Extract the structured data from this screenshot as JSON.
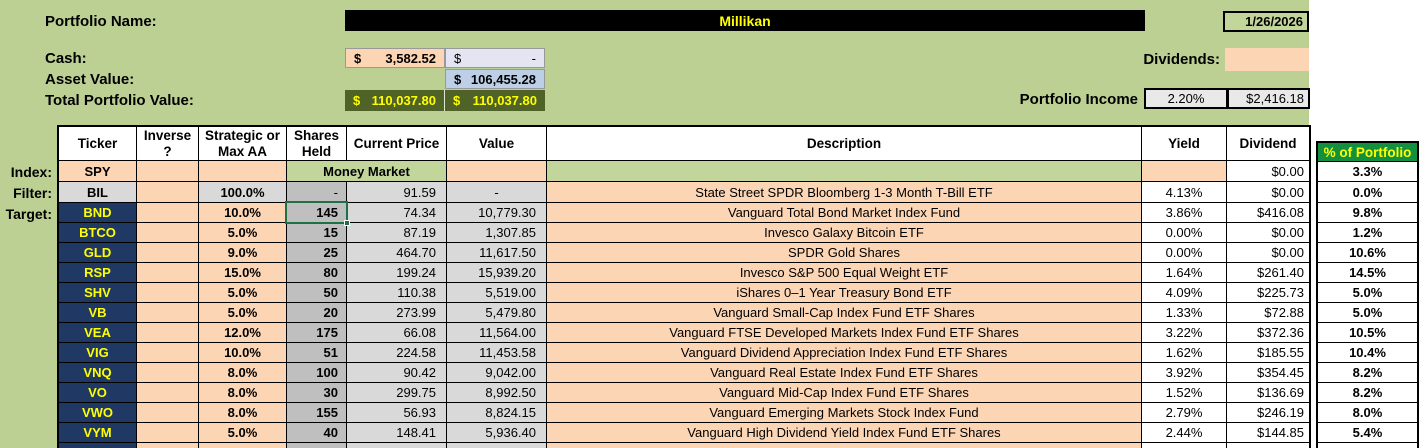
{
  "colors": {
    "page_green": "#bdd094",
    "cell_orange": "#fcd5b4",
    "cell_gray": "#d9d9d9",
    "cell_dark_gray": "#bfbfbf",
    "ticker_navy": "#1f3864",
    "ticker_yellow": "#ffff00",
    "total_olive": "#4f6228",
    "asset_blue": "#bdcfe6",
    "cash_alt_lavender": "#e3e6f2",
    "money_market_green": "#c2d69b",
    "pct_header_green": "#12903e",
    "selection_green": "#1e7145",
    "name_bar_black": "#000000"
  },
  "top": {
    "portfolio_name_label": "Portfolio Name:",
    "portfolio_name": "Millikan",
    "date": "1/26/2026",
    "currency_symbol": "$",
    "cash_label": "Cash:",
    "cash_value": "3,582.52",
    "cash_secondary": "-",
    "asset_value_label": "Asset Value:",
    "asset_value": "106,455.28",
    "total_label": "Total Portfolio Value:",
    "total_value_1": "110,037.80",
    "total_value_2": "110,037.80",
    "dividends_label": "Dividends:",
    "portfolio_income_label": "Portfolio Income",
    "portfolio_income_pct": "2.20%",
    "portfolio_income_value": "$2,416.18"
  },
  "table": {
    "columns": [
      "Ticker",
      "Inverse\n?",
      "Strategic or\nMax AA",
      "Shares\nHeld",
      "Current Price",
      "Value",
      "Description",
      "Yield",
      "Dividend"
    ],
    "pct_column_header": "% of Portfolio",
    "row_labels": {
      "index": "Index:",
      "filter": "Filter:",
      "target": "Target:"
    },
    "index_row": {
      "ticker": "SPY",
      "money_market_label": "Money Market",
      "dividend": "$0.00",
      "pct_of_portfolio": "3.3%"
    },
    "filter_row": {
      "ticker": "BIL",
      "allocation": "100.0%",
      "shares": "-",
      "price": "91.59",
      "value": "-",
      "description": "State Street SPDR Bloomberg 1-3 Month T-Bill ETF",
      "yield": "4.13%",
      "dividend": "$0.00",
      "pct_of_portfolio": "0.0%"
    },
    "selected_cell": {
      "ticker_row": "BND",
      "column": "Shares Held",
      "value": "145"
    },
    "rows": [
      {
        "ticker": "BND",
        "allocation": "10.0%",
        "shares": "145",
        "price": "74.34",
        "value": "10,779.30",
        "description": "Vanguard Total Bond Market Index Fund",
        "yield": "3.86%",
        "dividend": "$416.08",
        "pct_of_portfolio": "9.8%"
      },
      {
        "ticker": "BTCO",
        "allocation": "5.0%",
        "shares": "15",
        "price": "87.19",
        "value": "1,307.85",
        "description": "Invesco Galaxy Bitcoin ETF",
        "yield": "0.00%",
        "dividend": "$0.00",
        "pct_of_portfolio": "1.2%"
      },
      {
        "ticker": "GLD",
        "allocation": "9.0%",
        "shares": "25",
        "price": "464.70",
        "value": "11,617.50",
        "description": "SPDR Gold Shares",
        "yield": "0.00%",
        "dividend": "$0.00",
        "pct_of_portfolio": "10.6%"
      },
      {
        "ticker": "RSP",
        "allocation": "15.0%",
        "shares": "80",
        "price": "199.24",
        "value": "15,939.20",
        "description": "Invesco S&P 500 Equal Weight ETF",
        "yield": "1.64%",
        "dividend": "$261.40",
        "pct_of_portfolio": "14.5%"
      },
      {
        "ticker": "SHV",
        "allocation": "5.0%",
        "shares": "50",
        "price": "110.38",
        "value": "5,519.00",
        "description": "iShares 0–1 Year Treasury Bond ETF",
        "yield": "4.09%",
        "dividend": "$225.73",
        "pct_of_portfolio": "5.0%"
      },
      {
        "ticker": "VB",
        "allocation": "5.0%",
        "shares": "20",
        "price": "273.99",
        "value": "5,479.80",
        "description": "Vanguard Small-Cap Index Fund ETF Shares",
        "yield": "1.33%",
        "dividend": "$72.88",
        "pct_of_portfolio": "5.0%"
      },
      {
        "ticker": "VEA",
        "allocation": "12.0%",
        "shares": "175",
        "price": "66.08",
        "value": "11,564.00",
        "description": "Vanguard FTSE Developed Markets Index Fund ETF Shares",
        "yield": "3.22%",
        "dividend": "$372.36",
        "pct_of_portfolio": "10.5%"
      },
      {
        "ticker": "VIG",
        "allocation": "10.0%",
        "shares": "51",
        "price": "224.58",
        "value": "11,453.58",
        "description": "Vanguard Dividend Appreciation Index Fund ETF Shares",
        "yield": "1.62%",
        "dividend": "$185.55",
        "pct_of_portfolio": "10.4%"
      },
      {
        "ticker": "VNQ",
        "allocation": "8.0%",
        "shares": "100",
        "price": "90.42",
        "value": "9,042.00",
        "description": "Vanguard Real Estate Index Fund ETF Shares",
        "yield": "3.92%",
        "dividend": "$354.45",
        "pct_of_portfolio": "8.2%"
      },
      {
        "ticker": "VO",
        "allocation": "8.0%",
        "shares": "30",
        "price": "299.75",
        "value": "8,992.50",
        "description": "Vanguard Mid-Cap Index Fund ETF Shares",
        "yield": "1.52%",
        "dividend": "$136.69",
        "pct_of_portfolio": "8.2%"
      },
      {
        "ticker": "VWO",
        "allocation": "8.0%",
        "shares": "155",
        "price": "56.93",
        "value": "8,824.15",
        "description": "Vanguard Emerging Markets Stock Index Fund",
        "yield": "2.79%",
        "dividend": "$246.19",
        "pct_of_portfolio": "8.0%"
      },
      {
        "ticker": "VYM",
        "allocation": "5.0%",
        "shares": "40",
        "price": "148.41",
        "value": "5,936.40",
        "description": "Vanguard High Dividend Yield Index Fund ETF Shares",
        "yield": "2.44%",
        "dividend": "$144.85",
        "pct_of_portfolio": "5.4%"
      }
    ]
  }
}
